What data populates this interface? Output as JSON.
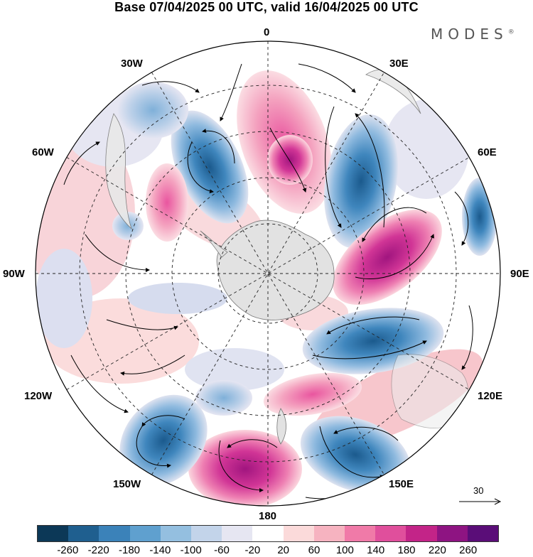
{
  "title": "Base 07/04/2025 00 UTC, valid 16/04/2025 00 UTC",
  "brand": "MODES",
  "brand_mark": "®",
  "longitude_labels": {
    "n0": "0",
    "e30": "30E",
    "e60": "60E",
    "e90": "90E",
    "e120": "120E",
    "e150": "150E",
    "s180": "180",
    "w150": "150W",
    "w120": "120W",
    "w90": "90W",
    "w60": "60W",
    "w30": "30W"
  },
  "reference_vector": "30",
  "colorbar": {
    "colors": [
      "#0c3857",
      "#1f5f8f",
      "#3b82b9",
      "#5fa0cf",
      "#94bfe0",
      "#c3d4ea",
      "#e6e6f2",
      "#ffffff",
      "#fbdada",
      "#f6b3c0",
      "#f07aa8",
      "#e04f9c",
      "#c32488",
      "#8e1482",
      "#5a0d78"
    ],
    "ticks": [
      "-260",
      "-220",
      "-180",
      "-140",
      "-100",
      "-60",
      "-20",
      "20",
      "60",
      "100",
      "140",
      "180",
      "220",
      "260"
    ]
  }
}
